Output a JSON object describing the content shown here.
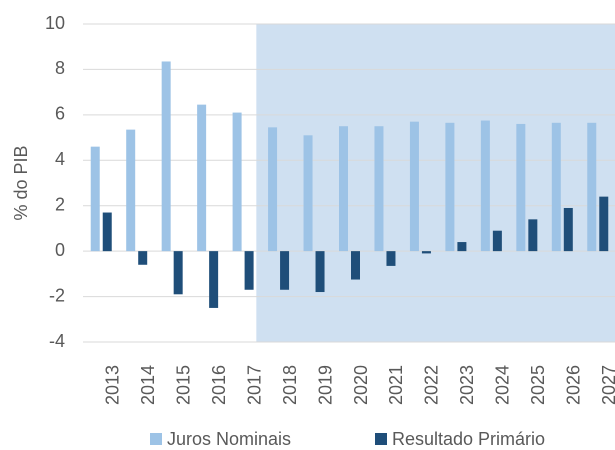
{
  "chart_data": {
    "type": "bar",
    "y_label": "% do PIB",
    "categories": [
      "2013",
      "2014",
      "2015",
      "2016",
      "2017",
      "2018",
      "2019",
      "2020",
      "2021",
      "2022",
      "2023",
      "2024",
      "2025",
      "2026",
      "2027"
    ],
    "series": [
      {
        "name": "Juros Nominais",
        "color": "#9dc3e6",
        "values": [
          4.6,
          5.35,
          8.35,
          6.45,
          6.1,
          5.45,
          5.1,
          5.5,
          5.5,
          5.7,
          5.65,
          5.75,
          5.6,
          5.65,
          5.65
        ]
      },
      {
        "name": "Resultado Primário",
        "color": "#1f4e79",
        "values": [
          1.7,
          -0.6,
          -1.9,
          -2.5,
          -1.7,
          -1.7,
          -1.8,
          -1.25,
          -0.65,
          -0.1,
          0.4,
          0.9,
          1.4,
          1.9,
          2.4
        ]
      }
    ],
    "ylim": [
      -4,
      10
    ],
    "yticks": [
      -4,
      -2,
      0,
      2,
      4,
      6,
      8,
      10
    ],
    "grid": true
  }
}
